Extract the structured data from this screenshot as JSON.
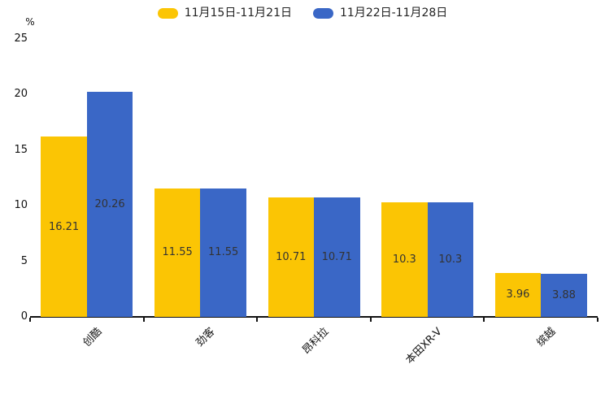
{
  "chart_data": {
    "type": "bar",
    "title": "",
    "ylabel": "%",
    "xlabel": "",
    "ylim": [
      0,
      25
    ],
    "yticks": [
      0,
      5,
      10,
      15,
      20,
      25
    ],
    "grid": false,
    "legend_position": "top",
    "value_labels": "inside-center",
    "categories": [
      "创酷",
      "劲客",
      "昂科拉",
      "本田XR-V",
      "缤越"
    ],
    "series": [
      {
        "name": "11月15日-11月21日",
        "color": "#FBC504",
        "values": [
          16.21,
          11.55,
          10.71,
          10.3,
          3.96
        ]
      },
      {
        "name": "11月22日-11月28日",
        "color": "#3A67C6",
        "values": [
          20.26,
          11.55,
          10.71,
          10.3,
          3.88
        ]
      }
    ],
    "axis_color": "#111111",
    "value_label_color": "#333333"
  }
}
